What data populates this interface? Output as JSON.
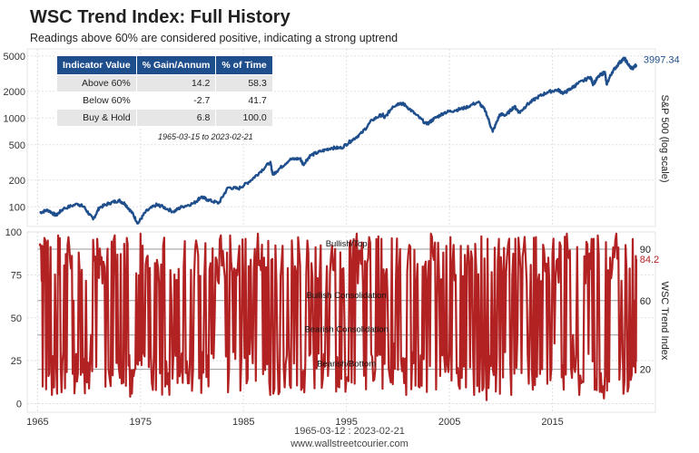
{
  "title": "WSC Trend Index: Full History",
  "subtitle": "Readings above 60% are considered positive, indicating a strong uptrend",
  "footer": {
    "date_span": "1965-03-12 : 2023-02-21",
    "site": "www.wallstreetcourier.com"
  },
  "table": {
    "headers": [
      "Indicator Value",
      "% Gain/Annum",
      "% of Time"
    ],
    "rows": [
      {
        "label": "Above 60%",
        "gain": "14.2",
        "time": "58.3"
      },
      {
        "label": "Below 60%",
        "gain": "-2.7",
        "time": "41.7"
      },
      {
        "label": "Buy & Hold",
        "gain": "6.8",
        "time": "100.0"
      }
    ],
    "date_range": "1965-03-15 to 2023-02-21"
  },
  "colors": {
    "sp500": "#1f4e8c",
    "trend": "#b22222",
    "grid": "#e0e0e0",
    "ref_line": "#999999"
  },
  "chart_data": [
    {
      "type": "line",
      "ylabel": "S&P 500 (log scale)",
      "yscale": "log",
      "ylim": [
        60,
        6000
      ],
      "xlim": [
        1964,
        2025
      ],
      "yticks": [
        100,
        200,
        500,
        1000,
        2000,
        5000
      ],
      "ytick_labels": [
        "100",
        "200",
        "500",
        "1000",
        "2000",
        "5000"
      ],
      "last_value_label": "3997.34",
      "series": [
        {
          "x": [
            1965.2,
            1966,
            1966.8,
            1967.5,
            1968.9,
            1969.5,
            1970.4,
            1971,
            1972,
            1972.9,
            1973.5,
            1974.2,
            1974.75,
            1975.5,
            1976.5,
            1977,
            1978.2,
            1979,
            1980.2,
            1980.9,
            1981.5,
            1982.6,
            1983.5,
            1984.5,
            1985.5,
            1986.5,
            1987.6,
            1987.85,
            1988.5,
            1989.5,
            1990.5,
            1990.8,
            1991.5,
            1992.5,
            1993.5,
            1994.5,
            1995.5,
            1996.5,
            1997.5,
            1998.5,
            1998.7,
            1999.5,
            2000.2,
            2000.7,
            2001.7,
            2002.8,
            2003.5,
            2004.5,
            2005.5,
            2006.5,
            2007.8,
            2008.5,
            2009.2,
            2009.9,
            2010.5,
            2011.3,
            2011.8,
            2012.5,
            2013.5,
            2014.5,
            2015.5,
            2016.1,
            2016.8,
            2017.5,
            2018.7,
            2018.95,
            2019.5,
            2020.1,
            2020.25,
            2020.8,
            2021.5,
            2021.99,
            2022.5,
            2022.8,
            2023.14
          ],
          "y": [
            86,
            92,
            80,
            95,
            108,
            100,
            72,
            98,
            110,
            118,
            108,
            85,
            65,
            88,
            105,
            102,
            88,
            100,
            110,
            130,
            120,
            110,
            165,
            160,
            190,
            240,
            320,
            230,
            270,
            340,
            350,
            300,
            380,
            420,
            460,
            460,
            560,
            680,
            950,
            1100,
            1000,
            1350,
            1480,
            1400,
            1100,
            850,
            980,
            1150,
            1220,
            1300,
            1520,
            1200,
            700,
            1100,
            1080,
            1350,
            1150,
            1400,
            1700,
            1950,
            2080,
            1900,
            2150,
            2450,
            2900,
            2400,
            2950,
            3300,
            2400,
            3300,
            4200,
            4700,
            3800,
            3600,
            3997.34
          ]
        }
      ]
    },
    {
      "type": "line",
      "ylabel": "WSC Trend Index",
      "ylim": [
        -5,
        100
      ],
      "xlim": [
        1964,
        2025
      ],
      "yticks": [
        0,
        25,
        50,
        75,
        100
      ],
      "ytick_labels": [
        "0",
        "25",
        "50",
        "75",
        "100"
      ],
      "xticks": [
        1965,
        1975,
        1985,
        1995,
        2005,
        2015
      ],
      "xtick_labels": [
        "1965",
        "1975",
        "1985",
        "1995",
        "2005",
        "2015"
      ],
      "reference_lines": [
        {
          "value": 90,
          "label": "90",
          "zone": "Bullish/Top"
        },
        {
          "value": 60,
          "label": "60",
          "zone": "Bullish Consolidation"
        },
        {
          "value": 40,
          "zone": "Bearish Consolidation"
        },
        {
          "value": 20,
          "label": "20",
          "zone": "Bearish/Bottom"
        }
      ],
      "last_value_label": "84.2",
      "series": [
        {
          "x": [
            1965.2,
            1965.5,
            1966,
            1966.4,
            1967,
            1967.5,
            1968,
            1968.5,
            1969,
            1969.6,
            1970.2,
            1970.8,
            1971.3,
            1971.9,
            1972.5,
            1973,
            1973.5,
            1974,
            1974.5,
            1975,
            1975.6,
            1976.2,
            1976.8,
            1977.4,
            1978,
            1978.6,
            1979.2,
            1979.8,
            1980.4,
            1981,
            1981.6,
            1982.2,
            1982.8,
            1983.4,
            1984,
            1984.6,
            1985.2,
            1985.8,
            1986.4,
            1987,
            1987.6,
            1988.2,
            1988.8,
            1989.4,
            1990,
            1990.6,
            1991.2,
            1991.8,
            1992.4,
            1993,
            1993.6,
            1994.2,
            1994.8,
            1995.4,
            1996,
            1996.6,
            1997.2,
            1997.8,
            1998.4,
            1999,
            1999.6,
            2000.2,
            2000.8,
            2001.4,
            2002,
            2002.6,
            2003.2,
            2003.8,
            2004.4,
            2005,
            2005.6,
            2006.2,
            2006.8,
            2007.4,
            2008,
            2008.6,
            2009.2,
            2009.8,
            2010.4,
            2011,
            2011.6,
            2012.2,
            2012.8,
            2013.4,
            2014,
            2014.6,
            2015.2,
            2015.8,
            2016.4,
            2017,
            2017.6,
            2018.2,
            2018.8,
            2019.4,
            2020,
            2020.6,
            2021.2,
            2021.8,
            2022.4,
            2023,
            2023.14
          ],
          "y": [
            92,
            10,
            95,
            5,
            98,
            30,
            97,
            60,
            88,
            6,
            40,
            96,
            70,
            20,
            98,
            15,
            62,
            4,
            20,
            99,
            85,
            8,
            70,
            10,
            60,
            12,
            80,
            25,
            95,
            30,
            10,
            50,
            98,
            88,
            30,
            92,
            96,
            40,
            99,
            85,
            5,
            70,
            92,
            35,
            80,
            8,
            95,
            30,
            75,
            60,
            92,
            10,
            50,
            95,
            99,
            70,
            97,
            20,
            96,
            60,
            35,
            90,
            5,
            30,
            10,
            80,
            99,
            60,
            88,
            30,
            75,
            15,
            92,
            5,
            30,
            2,
            20,
            96,
            30,
            5,
            40,
            90,
            50,
            97,
            20,
            85,
            35,
            92,
            99,
            40,
            5,
            70,
            96,
            98,
            3,
            85,
            99,
            40,
            10,
            60,
            84.2
          ]
        }
      ]
    }
  ]
}
